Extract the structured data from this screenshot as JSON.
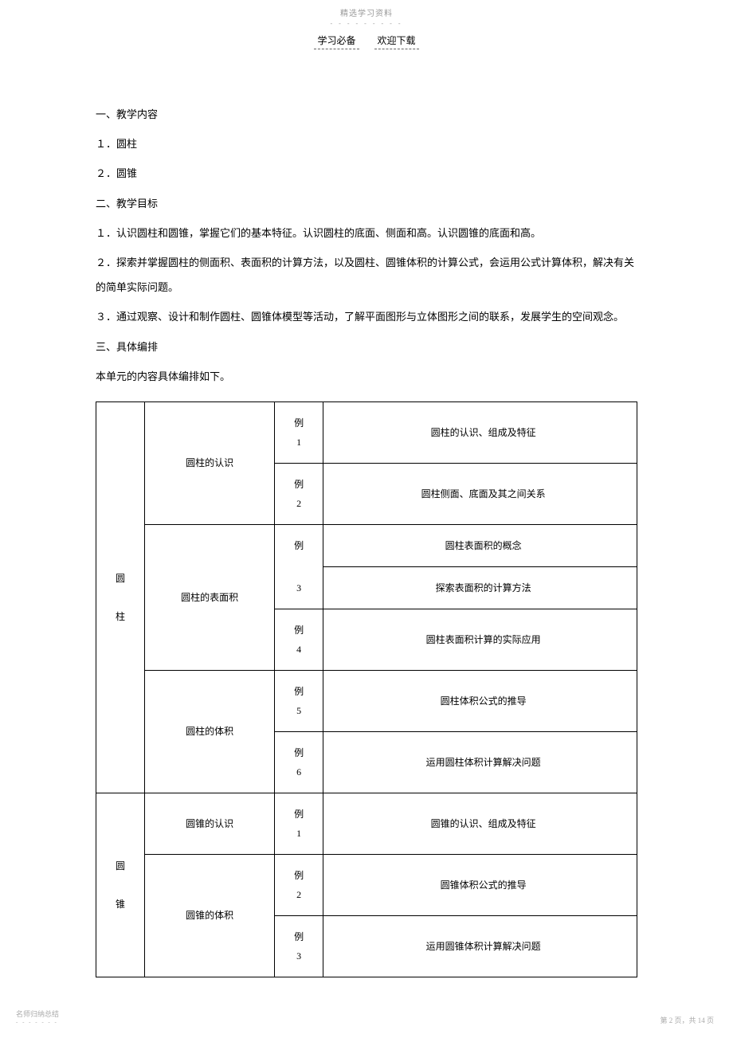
{
  "header": {
    "title": "精选学习资料",
    "dots": "- - - - - - - - -",
    "sub_left": "学习必备",
    "sub_right": "欢迎下载"
  },
  "sections": {
    "s1_title": "一、教学内容",
    "s1_item1": "１．圆柱",
    "s1_item2": "２．圆锥",
    "s2_title": "二、教学目标",
    "s2_item1": "１．认识圆柱和圆锥，掌握它们的基本特征。认识圆柱的底面、侧面和高。认识圆锥的底面和高。",
    "s2_item2": "２．探索并掌握圆柱的侧面积、表面积的计算方法，以及圆柱、圆锥体积的计算公式，会运用公式计算体积，解决有关的简单实际问题。",
    "s2_item3": "３．通过观察、设计和制作圆柱、圆锥体模型等活动，了解平面图形与立体图形之间的联系，发展学生的空间观念。",
    "s3_title": "三、具体编排",
    "s3_intro": "本单元的内容具体编排如下。"
  },
  "table": {
    "cylinder_label": "圆柱",
    "cone_label": "圆锥",
    "rows": [
      {
        "group": "圆柱的认识",
        "ex": "例1",
        "desc": "圆柱的认识、组成及特征"
      },
      {
        "group": "",
        "ex": "例2",
        "desc": "圆柱侧面、底面及其之间关系"
      },
      {
        "group": "圆柱的表面积",
        "ex": "例3",
        "desc_a": "圆柱表面积的概念",
        "desc_b": "探索表面积的计算方法"
      },
      {
        "group": "",
        "ex": "例4",
        "desc": "圆柱表面积计算的实际应用"
      },
      {
        "group": "圆柱的体积",
        "ex": "例5",
        "desc": "圆柱体积公式的推导"
      },
      {
        "group": "",
        "ex": "例6",
        "desc": "运用圆柱体积计算解决问题"
      },
      {
        "group": "圆锥的认识",
        "ex": "例1",
        "desc": "圆锥的认识、组成及特征"
      },
      {
        "group": "圆锥的体积",
        "ex": "例2",
        "desc": "圆锥体积公式的推导"
      },
      {
        "group": "",
        "ex": "例3",
        "desc": "运用圆锥体积计算解决问题"
      }
    ]
  },
  "footer": {
    "left": "名师归纳总结",
    "left_dots": "- - - - - - -",
    "right": "第 2 页，共 14 页"
  }
}
